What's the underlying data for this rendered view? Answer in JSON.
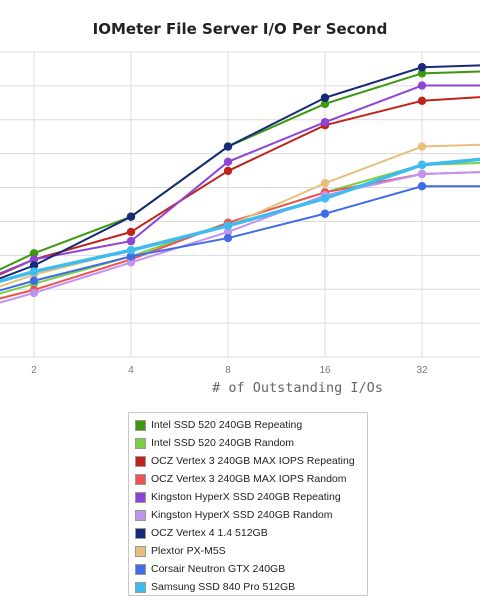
{
  "chart_data": {
    "type": "line",
    "title": "IOMeter File Server I/O Per Second",
    "xlabel": "# of Outstanding I/Os",
    "ylabel": "",
    "x_scale": "log2",
    "x_ticks": [
      "2",
      "4",
      "8",
      "16",
      "32"
    ],
    "x": [
      1,
      2,
      4,
      8,
      16,
      32,
      64
    ],
    "xlim": [
      1,
      64
    ],
    "ylim": [
      0,
      10
    ],
    "y_gridlines": 9,
    "legend_position": "bottom",
    "series": [
      {
        "name": "Intel SSD 520 240GB Repeating",
        "color": "#3a9a0c",
        "values": [
          1.9,
          3.4,
          4.6,
          6.9,
          8.3,
          9.3,
          9.4
        ]
      },
      {
        "name": "Intel SSD 520 240GB Random",
        "color": "#7bcf45",
        "values": [
          1.5,
          2.4,
          3.3,
          4.4,
          5.4,
          6.3,
          6.4
        ]
      },
      {
        "name": "OCZ Vertex 3 240GB MAX IOPS Repeating",
        "color": "#c0231b",
        "values": [
          1.8,
          3.2,
          4.1,
          6.1,
          7.6,
          8.4,
          8.6
        ]
      },
      {
        "name": "OCZ Vertex 3 240GB MAX IOPS Random",
        "color": "#ee5353",
        "values": [
          1.4,
          2.2,
          3.2,
          4.4,
          5.4,
          6.0,
          6.1
        ]
      },
      {
        "name": "Kingston HyperX SSD 240GB Repeating",
        "color": "#8e44d6",
        "values": [
          1.9,
          3.2,
          3.8,
          6.4,
          7.7,
          8.9,
          8.9
        ]
      },
      {
        "name": "Kingston HyperX SSD 240GB Random",
        "color": "#c193ef",
        "values": [
          1.2,
          2.1,
          3.1,
          4.1,
          5.3,
          6.0,
          6.1
        ]
      },
      {
        "name": "OCZ Vertex 4 1.4 512GB",
        "color": "#172a78",
        "values": [
          1.8,
          3.0,
          4.6,
          6.9,
          8.5,
          9.5,
          9.6
        ]
      },
      {
        "name": "Plextor PX-M5S",
        "color": "#e7c07d",
        "values": [
          1.6,
          2.7,
          3.5,
          4.3,
          5.7,
          6.9,
          7.0
        ]
      },
      {
        "name": "Corsair Neutron GTX 240GB",
        "color": "#3f6de8",
        "values": [
          1.6,
          2.5,
          3.3,
          3.9,
          4.7,
          5.6,
          5.6
        ]
      },
      {
        "name": "Samsung SSD 840 Pro 512GB",
        "color": "#3ebcf0",
        "values": [
          1.9,
          2.8,
          3.5,
          4.3,
          5.2,
          6.3,
          6.6
        ]
      }
    ]
  }
}
